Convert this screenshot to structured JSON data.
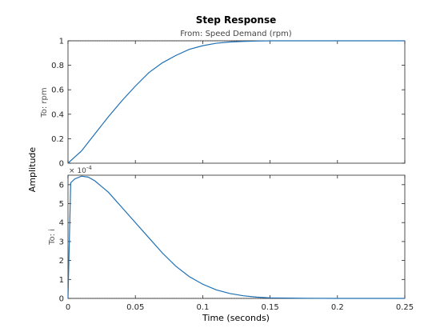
{
  "chart_data": {
    "type": "line",
    "title": "Step Response",
    "subtitle": "From: Speed Demand (rpm)",
    "xlabel": "Time (seconds)",
    "ylabel": "Amplitude",
    "xlim": [
      0,
      0.25
    ],
    "x_ticks": [
      "0",
      "0.05",
      "0.1",
      "0.15",
      "0.2",
      "0.25"
    ],
    "line_color": "#1f6fb4",
    "grid": false,
    "subplots": [
      {
        "ylabel": "To: rpm",
        "ylim": [
          0,
          1
        ],
        "y_ticks": [
          "0",
          "0.2",
          "0.4",
          "0.6",
          "0.8",
          "1"
        ],
        "x": [
          0,
          0.005,
          0.01,
          0.02,
          0.03,
          0.04,
          0.05,
          0.06,
          0.07,
          0.08,
          0.09,
          0.1,
          0.11,
          0.12,
          0.13,
          0.14,
          0.15,
          0.2,
          0.25
        ],
        "values": [
          0,
          0.05,
          0.1,
          0.24,
          0.38,
          0.51,
          0.63,
          0.74,
          0.82,
          0.88,
          0.93,
          0.96,
          0.98,
          0.99,
          0.995,
          0.998,
          1,
          1,
          1
        ]
      },
      {
        "ylabel": "To: i",
        "ylim": [
          0,
          6.5
        ],
        "y_ticks": [
          "0",
          "1",
          "2",
          "3",
          "4",
          "5",
          "6"
        ],
        "y_multiplier": "× 10",
        "y_exponent": "-4",
        "x": [
          0,
          0.002,
          0.005,
          0.01,
          0.015,
          0.02,
          0.03,
          0.04,
          0.05,
          0.06,
          0.07,
          0.08,
          0.09,
          0.1,
          0.11,
          0.12,
          0.13,
          0.14,
          0.15,
          0.17,
          0.2,
          0.25
        ],
        "values": [
          0,
          6.1,
          6.3,
          6.45,
          6.4,
          6.2,
          5.6,
          4.8,
          4.0,
          3.2,
          2.4,
          1.7,
          1.15,
          0.75,
          0.45,
          0.26,
          0.14,
          0.07,
          0.03,
          0.01,
          0,
          0
        ]
      }
    ]
  }
}
